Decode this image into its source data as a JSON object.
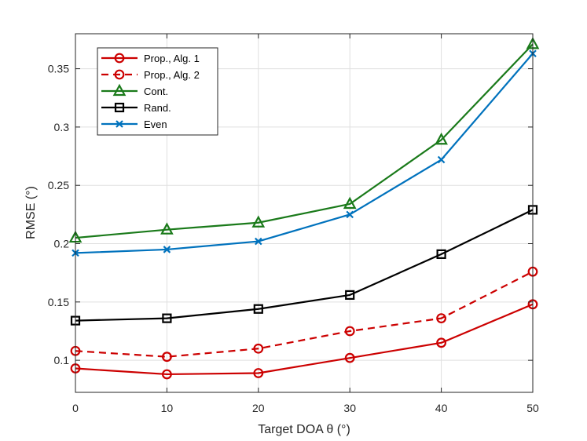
{
  "chart_data": {
    "type": "line",
    "xlabel": "Target DOA θ (°)",
    "ylabel": "RMSE (°)",
    "xlim": [
      0,
      50
    ],
    "ylim": [
      0.0725,
      0.38
    ],
    "xticks": [
      0,
      10,
      20,
      30,
      40,
      50
    ],
    "yticks": [
      0.1,
      0.15,
      0.2,
      0.25,
      0.3,
      0.35
    ],
    "xtick_labels": [
      "0",
      "10",
      "20",
      "30",
      "40",
      "50"
    ],
    "ytick_labels": [
      "0.1",
      "0.15",
      "0.2",
      "0.25",
      "0.3",
      "0.35"
    ],
    "grid": true,
    "legend_position": "top-left",
    "x": [
      0,
      10,
      20,
      30,
      40,
      50
    ],
    "series": [
      {
        "name": "Prop., Alg. 1",
        "color": "#cc0000",
        "dash": "solid",
        "marker": "circle",
        "values": [
          0.093,
          0.088,
          0.089,
          0.102,
          0.115,
          0.148
        ]
      },
      {
        "name": "Prop., Alg. 2",
        "color": "#cc0000",
        "dash": "dashed",
        "marker": "circle",
        "values": [
          0.108,
          0.103,
          0.11,
          0.125,
          0.136,
          0.176
        ]
      },
      {
        "name": "Cont.",
        "color": "#1a7a1a",
        "dash": "solid",
        "marker": "triangle",
        "values": [
          0.205,
          0.212,
          0.218,
          0.234,
          0.289,
          0.371
        ]
      },
      {
        "name": "Rand.",
        "color": "#000000",
        "dash": "solid",
        "marker": "square",
        "values": [
          0.134,
          0.136,
          0.144,
          0.156,
          0.191,
          0.229
        ]
      },
      {
        "name": "Even",
        "color": "#0072bd",
        "dash": "solid",
        "marker": "x",
        "values": [
          0.192,
          0.195,
          0.202,
          0.225,
          0.272,
          0.363
        ]
      }
    ]
  }
}
